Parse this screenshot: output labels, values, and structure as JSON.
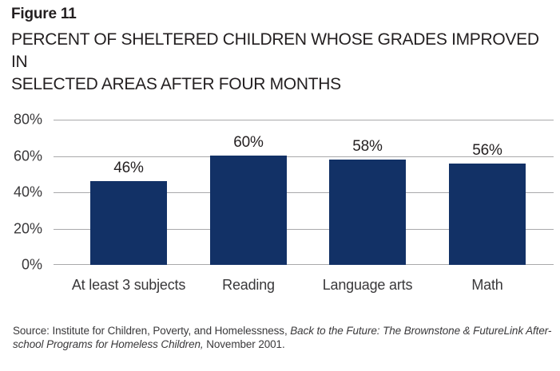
{
  "figure": {
    "label": "Figure 11",
    "title_line1": "PERCENT OF SHELTERED CHILDREN WHOSE GRADES IMPROVED IN",
    "title_line2": "SELECTED AREAS AFTER FOUR MONTHS"
  },
  "chart_data": {
    "type": "bar",
    "title": "PERCENT OF SHELTERED CHILDREN WHOSE GRADES IMPROVED IN SELECTED AREAS AFTER FOUR MONTHS",
    "categories": [
      "At least 3 subjects",
      "Reading",
      "Language arts",
      "Math"
    ],
    "values": [
      46,
      60,
      58,
      56
    ],
    "value_labels": [
      "46%",
      "60%",
      "58%",
      "56%"
    ],
    "y_ticks": [
      "80%",
      "60%",
      "40%",
      "20%",
      "0%"
    ],
    "ylim": [
      0,
      80
    ],
    "grid": true,
    "legend": "none",
    "bar_color": "#123166",
    "gridline_color": "#a9a9ab"
  },
  "source": {
    "prefix": "Source: Institute for Children, Poverty, and Homelessness, ",
    "italic": "Back to the Future: The Brownstone & FutureLink After-school Programs for Homeless Children,",
    "suffix": " November 2001."
  }
}
